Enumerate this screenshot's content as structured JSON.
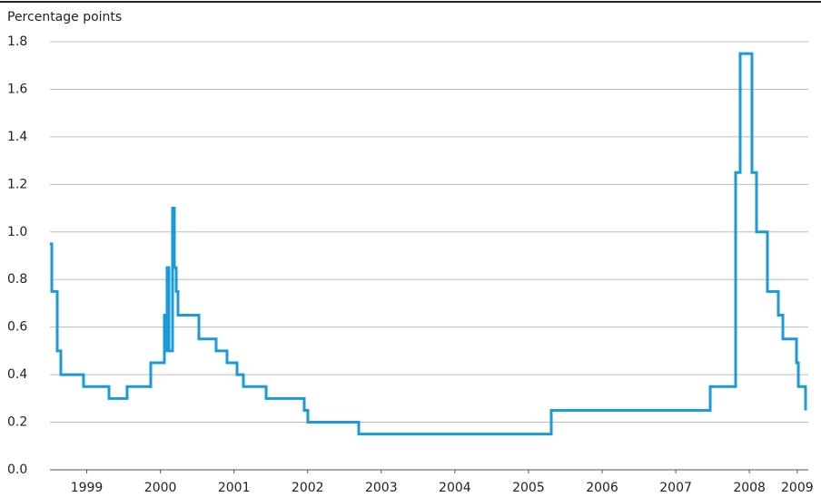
{
  "chart_data": {
    "type": "line",
    "y_label": "Percentage points",
    "xlim": [
      1999.0,
      2009.3
    ],
    "ylim": [
      0,
      1.8
    ],
    "yticks": [
      {
        "value": 0,
        "label": "0.0"
      },
      {
        "value": 0.2,
        "label": "0.2"
      },
      {
        "value": 0.4,
        "label": "0.4"
      },
      {
        "value": 0.6,
        "label": "0.6"
      },
      {
        "value": 0.8,
        "label": "0.8"
      },
      {
        "value": 1,
        "label": "1.0"
      },
      {
        "value": 1.2,
        "label": "1.2"
      },
      {
        "value": 1.4,
        "label": "1.4"
      },
      {
        "value": 1.6,
        "label": "1.6"
      },
      {
        "value": 1.8,
        "label": "1.8"
      }
    ],
    "xticks": [
      {
        "value": 1999.5,
        "label": "1999"
      },
      {
        "value": 2000.5,
        "label": "2000"
      },
      {
        "value": 2001.5,
        "label": "2001"
      },
      {
        "value": 2002.5,
        "label": "2002"
      },
      {
        "value": 2003.5,
        "label": "2003"
      },
      {
        "value": 2004.5,
        "label": "2004"
      },
      {
        "value": 2005.5,
        "label": "2005"
      },
      {
        "value": 2006.5,
        "label": "2006"
      },
      {
        "value": 2007.5,
        "label": "2007"
      },
      {
        "value": 2008.5,
        "label": "2008"
      },
      {
        "value": 2009.15,
        "label": "2009"
      }
    ],
    "grid": true,
    "series": [
      {
        "color": "#1a9ad6",
        "x": [
          1999.0,
          1999.025,
          1999.025,
          1999.099,
          1999.099,
          1999.148,
          1999.148,
          1999.456,
          1999.456,
          1999.802,
          1999.802,
          2000.048,
          2000.048,
          2000.369,
          2000.369,
          2000.554,
          2000.554,
          2000.579,
          2000.579,
          2000.591,
          2000.591,
          2000.616,
          2000.616,
          2000.665,
          2000.665,
          2000.69,
          2000.69,
          2000.715,
          2000.715,
          2000.739,
          2000.739,
          2001.023,
          2001.023,
          2001.257,
          2001.257,
          2001.405,
          2001.405,
          2001.541,
          2001.541,
          2001.627,
          2001.627,
          2001.936,
          2001.936,
          2002.454,
          2002.454,
          2002.503,
          2002.503,
          2003.194,
          2003.194,
          2005.809,
          2005.809,
          2007.968,
          2007.968,
          2008.313,
          2008.313,
          2008.375,
          2008.375,
          2008.535,
          2008.535,
          2008.597,
          2008.597,
          2008.745,
          2008.745,
          2008.893,
          2008.893,
          2008.955,
          2008.955,
          2009.14,
          2009.14,
          2009.165,
          2009.165,
          2009.263,
          2009.263
        ],
        "values": [
          0.95,
          0.95,
          0.75,
          0.75,
          0.5,
          0.5,
          0.4,
          0.4,
          0.35,
          0.35,
          0.3,
          0.3,
          0.35,
          0.35,
          0.45,
          0.45,
          0.65,
          0.65,
          0.5,
          0.5,
          0.85,
          0.85,
          0.5,
          0.5,
          1.1,
          1.1,
          0.85,
          0.85,
          0.75,
          0.75,
          0.65,
          0.65,
          0.55,
          0.55,
          0.5,
          0.5,
          0.45,
          0.45,
          0.4,
          0.4,
          0.35,
          0.35,
          0.3,
          0.3,
          0.25,
          0.25,
          0.2,
          0.2,
          0.15,
          0.15,
          0.25,
          0.25,
          0.35,
          0.35,
          1.25,
          1.25,
          1.75,
          1.75,
          1.25,
          1.25,
          1.0,
          1.0,
          0.75,
          0.75,
          0.65,
          0.65,
          0.55,
          0.55,
          0.45,
          0.45,
          0.35,
          0.35,
          0.25
        ]
      }
    ]
  }
}
